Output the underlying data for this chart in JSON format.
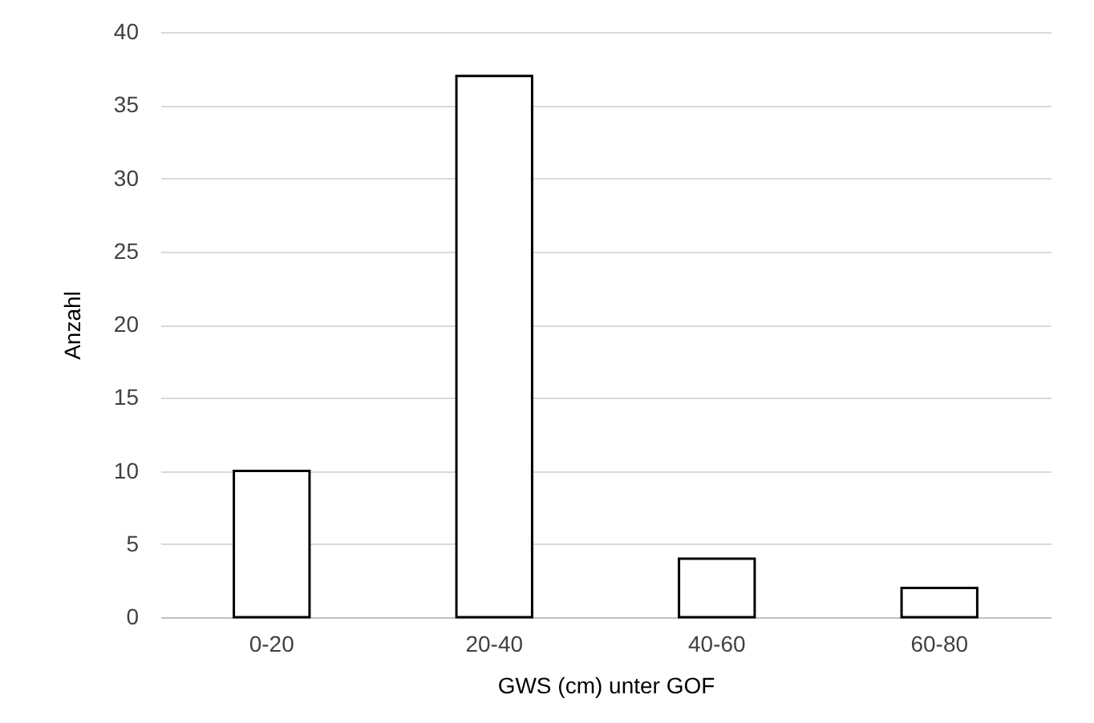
{
  "chart_data": {
    "type": "bar",
    "xlabel": "GWS (cm) unter GOF",
    "ylabel": "Anzahl",
    "categories": [
      "0-20",
      "20-40",
      "40-60",
      "60-80"
    ],
    "values": [
      10,
      37,
      4,
      2
    ],
    "color": "#ffffff",
    "ylim": [
      0,
      40
    ],
    "yticks": [
      0,
      5,
      10,
      15,
      20,
      25,
      30,
      35,
      40
    ],
    "grid": "y"
  }
}
